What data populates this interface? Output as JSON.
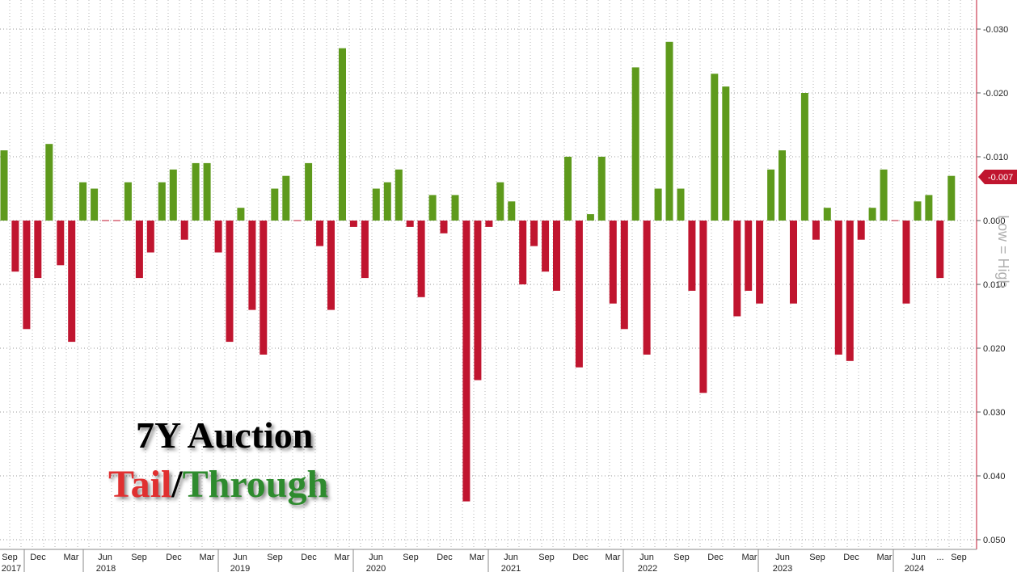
{
  "title": {
    "line1": "7Y Auction",
    "tail": "Tail",
    "slash": "/",
    "through": "Through"
  },
  "colors": {
    "through": "#5e9a1c",
    "tail": "#c0152f",
    "last_badge": "#c0152f",
    "title_tail": "#e03030",
    "title_through": "#2e8b2e"
  },
  "chart_data": {
    "type": "bar",
    "title": "7Y Auction Tail/Through",
    "ylabel": "Low = High",
    "y_axis_inverted": true,
    "ylim": [
      -0.032,
      0.05
    ],
    "yticks": [
      -0.03,
      -0.02,
      -0.01,
      0.0,
      0.01,
      0.02,
      0.03,
      0.04,
      0.05
    ],
    "ytick_labels": [
      "-0.030",
      "-0.020",
      "-0.010",
      "0.000",
      "0.010",
      "0.020",
      "0.030",
      "0.040",
      "0.050"
    ],
    "grid": true,
    "last_value_label": "-0.007",
    "x_month_labels": [
      "Sep",
      "Dec",
      "Mar",
      "Jun",
      "Sep",
      "Dec",
      "Mar",
      "Jun",
      "Sep",
      "Dec",
      "Mar",
      "Jun",
      "Sep",
      "Dec",
      "Mar",
      "Jun",
      "Sep",
      "Dec",
      "Mar",
      "Jun",
      "Sep",
      "Dec",
      "Mar",
      "Jun",
      "Sep",
      "Dec",
      "Mar",
      "Jun",
      "...",
      "Sep"
    ],
    "x_year_labels": [
      "2017",
      "2018",
      "2019",
      "2020",
      "2021",
      "2022",
      "2023",
      "2024"
    ],
    "categories": [
      "Sep 2017",
      "Oct 2017",
      "Nov 2017",
      "Dec 2017",
      "Jan 2018",
      "Feb 2018",
      "Mar 2018",
      "Apr 2018",
      "May 2018",
      "Jun 2018",
      "Jul 2018",
      "Aug 2018",
      "Sep 2018",
      "Oct 2018",
      "Nov 2018",
      "Dec 2018",
      "Jan 2019",
      "Feb 2019",
      "Mar 2019",
      "Apr 2019",
      "May 2019",
      "Jun 2019",
      "Jul 2019",
      "Aug 2019",
      "Sep 2019",
      "Oct 2019",
      "Nov 2019",
      "Dec 2019",
      "Jan 2020",
      "Feb 2020",
      "Mar 2020",
      "Apr 2020",
      "May 2020",
      "Jun 2020",
      "Jul 2020",
      "Aug 2020",
      "Sep 2020",
      "Oct 2020",
      "Nov 2020",
      "Dec 2020",
      "Jan 2021",
      "Feb 2021",
      "Mar 2021",
      "Apr 2021",
      "May 2021",
      "Jun 2021",
      "Jul 2021",
      "Aug 2021",
      "Sep 2021",
      "Oct 2021",
      "Nov 2021",
      "Dec 2021",
      "Jan 2022",
      "Feb 2022",
      "Mar 2022",
      "Apr 2022",
      "May 2022",
      "Jun 2022",
      "Jul 2022",
      "Aug 2022",
      "Sep 2022",
      "Oct 2022",
      "Nov 2022",
      "Dec 2022",
      "Jan 2023",
      "Feb 2023",
      "Mar 2023",
      "Apr 2023",
      "May 2023",
      "Jun 2023",
      "Jul 2023",
      "Aug 2023",
      "Sep 2023",
      "Oct 2023",
      "Nov 2023",
      "Dec 2023",
      "Jan 2024",
      "Feb 2024",
      "Mar 2024",
      "Apr 2024",
      "May 2024",
      "Jun 2024",
      "Jul 2024",
      "Aug 2024",
      "Sep 2024"
    ],
    "values": [
      -0.011,
      0.008,
      0.017,
      0.009,
      -0.012,
      0.007,
      0.019,
      -0.006,
      -0.005,
      0.0,
      0.0,
      -0.006,
      0.009,
      0.005,
      -0.006,
      -0.008,
      0.003,
      -0.009,
      -0.009,
      0.005,
      0.019,
      -0.002,
      0.014,
      0.021,
      -0.005,
      -0.007,
      0.0,
      -0.009,
      0.004,
      0.014,
      -0.027,
      0.001,
      0.009,
      -0.005,
      -0.006,
      -0.008,
      0.001,
      0.012,
      -0.004,
      0.002,
      -0.004,
      0.044,
      0.025,
      0.001,
      -0.006,
      -0.003,
      0.01,
      0.004,
      0.008,
      0.011,
      -0.01,
      0.023,
      -0.001,
      -0.01,
      0.013,
      0.017,
      -0.024,
      0.021,
      -0.005,
      -0.028,
      -0.005,
      0.011,
      0.027,
      -0.023,
      -0.021,
      0.015,
      0.011,
      0.013,
      -0.008,
      -0.011,
      0.013,
      -0.02,
      0.003,
      -0.002,
      0.021,
      0.022,
      0.003,
      -0.002,
      -0.008,
      0.0,
      0.013,
      -0.003,
      -0.004,
      0.009,
      -0.007
    ]
  }
}
